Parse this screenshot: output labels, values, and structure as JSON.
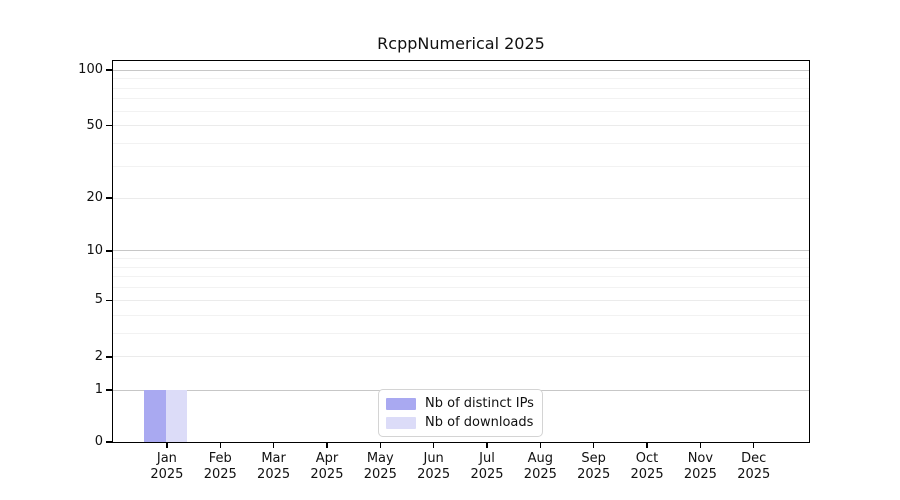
{
  "title": "RcppNumerical 2025",
  "chart_data": {
    "type": "bar",
    "title": "RcppNumerical 2025",
    "categories": [
      "Jan 2025",
      "Feb 2025",
      "Mar 2025",
      "Apr 2025",
      "May 2025",
      "Jun 2025",
      "Jul 2025",
      "Aug 2025",
      "Sep 2025",
      "Oct 2025",
      "Nov 2025",
      "Dec 2025"
    ],
    "series": [
      {
        "name": "Nb of distinct IPs",
        "color": "#a9a9f1",
        "values": [
          1,
          0,
          0,
          0,
          0,
          0,
          0,
          0,
          0,
          0,
          0,
          0
        ]
      },
      {
        "name": "Nb of downloads",
        "color": "#dcdcf8",
        "values": [
          1,
          0,
          0,
          0,
          0,
          0,
          0,
          0,
          0,
          0,
          0,
          0
        ]
      }
    ],
    "y_axis": {
      "scale": "log1p",
      "ticks": [
        0,
        1,
        2,
        5,
        10,
        20,
        50,
        100
      ],
      "minor_ticks": [
        3,
        4,
        6,
        7,
        8,
        9,
        30,
        40,
        60,
        70,
        80,
        90
      ],
      "range": [
        0,
        112
      ]
    },
    "x_axis": {
      "label_lines": 2,
      "year": "2025"
    },
    "grid": true,
    "legend_position": "bottom-center"
  },
  "legend": {
    "items": [
      {
        "label": "Nb of distinct IPs",
        "color": "#a9a9f1"
      },
      {
        "label": "Nb of downloads",
        "color": "#dcdcf8"
      }
    ]
  },
  "colors": {
    "bar_distinct_ips": "#a9a9f1",
    "bar_downloads": "#dcdcf8",
    "grid_decade": "#c7c7c7",
    "grid_light": "#ebebeb",
    "frame": "#000000"
  }
}
